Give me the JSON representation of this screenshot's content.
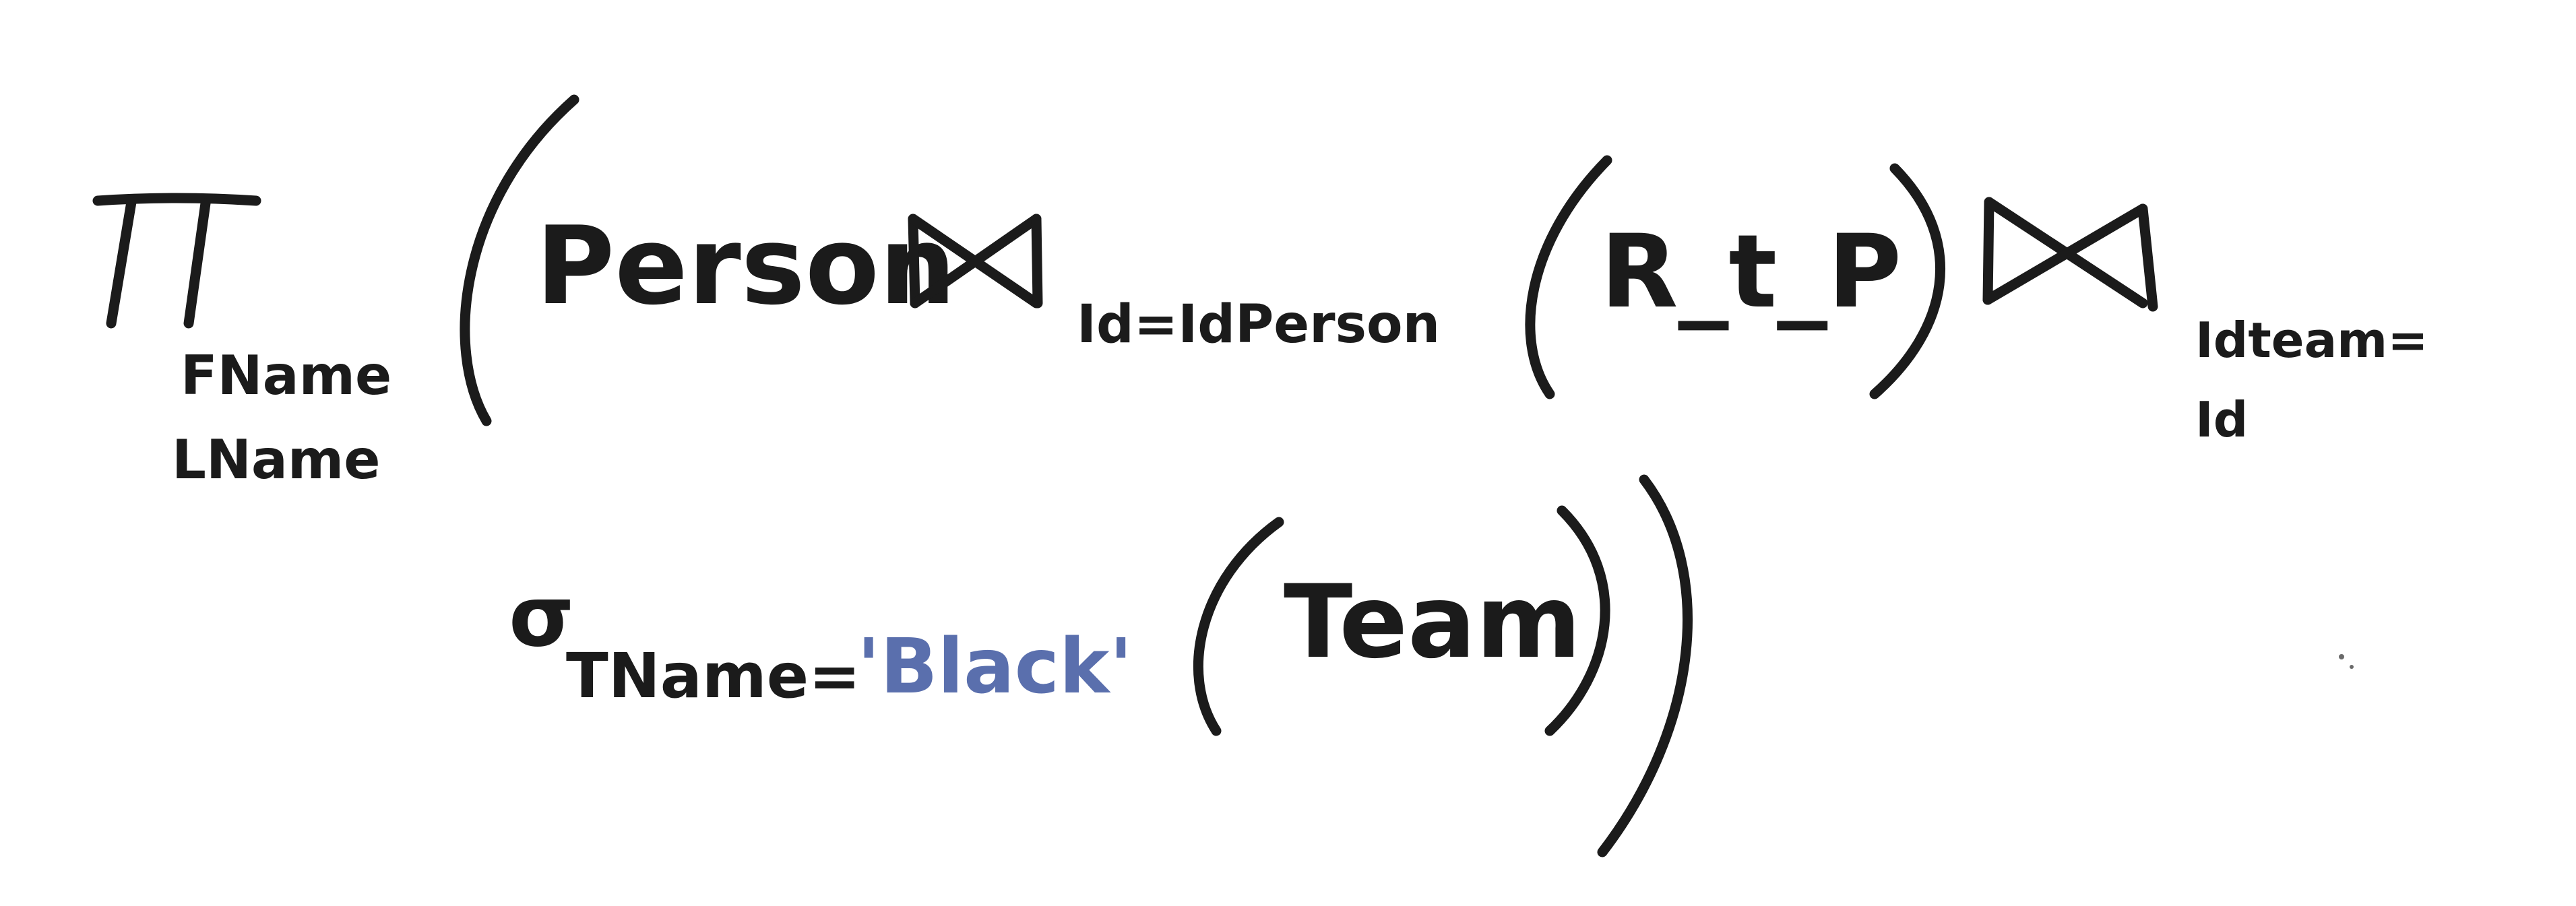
{
  "expression": {
    "projection": {
      "symbol": "π",
      "attributes": [
        "FName",
        "LName"
      ]
    },
    "relations": {
      "person": "Person",
      "link_table": "R_t_P",
      "team": "Team"
    },
    "joins": {
      "first_condition": "Id=IdPerson",
      "second_condition_line1": "Idteam=",
      "second_condition_line2": "Id"
    },
    "selection": {
      "symbol": "σ",
      "condition_prefix": "TName=",
      "value": "'Black'"
    },
    "colors": {
      "ink": "#1b1b1b",
      "value_ink": "#5a6fad"
    }
  }
}
